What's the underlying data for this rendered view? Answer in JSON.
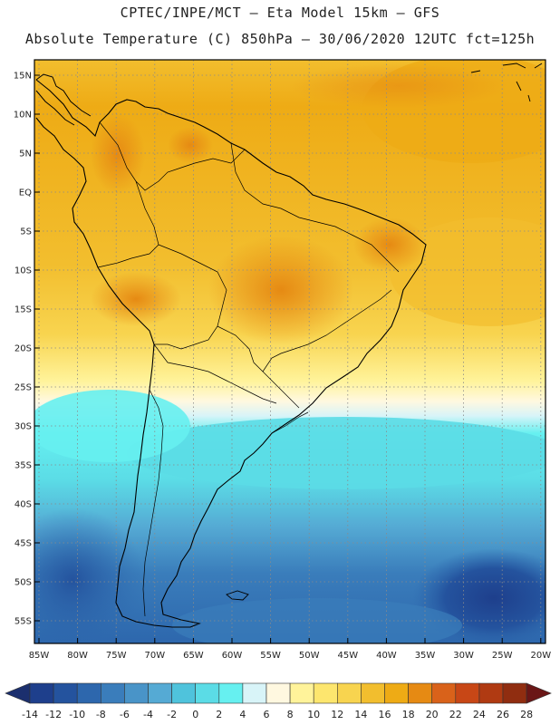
{
  "title_line1": "CPTEC/INPE/MCT –   Eta Model 15km – GFS",
  "title_line2": "Absolute Temperature (C) 850hPa – 30/06/2020 12UTC fct=125h",
  "lat_labels": [
    "15N",
    "10N",
    "5N",
    "EQ",
    "5S",
    "10S",
    "15S",
    "20S",
    "25S",
    "30S",
    "35S",
    "40S",
    "45S",
    "50S",
    "55S"
  ],
  "lon_labels": [
    "85W",
    "80W",
    "75W",
    "70W",
    "65W",
    "60W",
    "55W",
    "50W",
    "45W",
    "40W",
    "35W",
    "30W",
    "25W",
    "20W"
  ],
  "colorbar": {
    "ticks": [
      "-14",
      "-12",
      "-10",
      "-8",
      "-6",
      "-4",
      "-2",
      "0",
      "2",
      "4",
      "6",
      "8",
      "10",
      "12",
      "14",
      "16",
      "18",
      "20",
      "22",
      "24",
      "26",
      "28"
    ],
    "colors": [
      "#1e3f8c",
      "#24539e",
      "#2d67ad",
      "#3a7dbb",
      "#4994c8",
      "#55aad4",
      "#4fc3dc",
      "#5bdce6",
      "#66f0f0",
      "#d8f4f8",
      "#fff8e0",
      "#fff39a",
      "#fde66e",
      "#f8d44f",
      "#f2be2e",
      "#eeab15",
      "#e68a13",
      "#d9621a",
      "#c84716",
      "#b03a12",
      "#902d10"
    ],
    "under_color": "#1b2f6e",
    "over_color": "#6a1616"
  },
  "colors": {
    "ocean_cold": "#1f4f9c",
    "ocean_mid": "#3a8fc8",
    "cyan": "#56d6e4",
    "warm": "#eeab15",
    "hot": "#e68a13"
  }
}
